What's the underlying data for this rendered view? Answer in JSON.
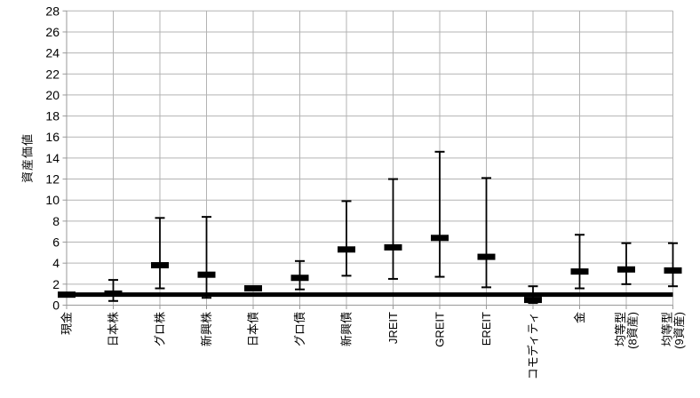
{
  "chart_data": {
    "type": "errorbar",
    "title": "",
    "ylabel": "資産価値",
    "xlabel": "",
    "ylim": [
      0,
      28
    ],
    "ytick_step": 2,
    "grid": true,
    "legend": "none",
    "reference_line_value": 1.0,
    "categories": [
      "現金",
      "日本株",
      "グロ株",
      "新興株",
      "日本債",
      "グロ債",
      "新興債",
      "JREIT",
      "GREIT",
      "EREIT",
      "コモディティ",
      "金",
      "均等型\n(8資産)",
      "均等型\n(9資産)"
    ],
    "series": [
      {
        "name": "median",
        "values": [
          1.0,
          1.1,
          3.8,
          2.9,
          1.6,
          2.6,
          5.3,
          5.5,
          6.4,
          4.6,
          0.5,
          3.2,
          3.4,
          3.3
        ]
      },
      {
        "name": "low",
        "values": [
          1.0,
          0.4,
          1.6,
          0.7,
          1.6,
          1.5,
          2.8,
          2.5,
          2.7,
          1.7,
          0.2,
          1.6,
          2.0,
          1.8
        ]
      },
      {
        "name": "high",
        "values": [
          1.0,
          2.4,
          8.3,
          8.4,
          1.6,
          4.2,
          9.9,
          12.0,
          14.6,
          12.1,
          1.8,
          6.7,
          5.9,
          5.9
        ]
      }
    ],
    "colors": {
      "data": "#000000",
      "gridline": "#b3b3b3",
      "axis": "#999999",
      "background": "#ffffff"
    },
    "y_tick_labels": [
      "0",
      "2",
      "4",
      "6",
      "8",
      "10",
      "12",
      "14",
      "16",
      "18",
      "20",
      "22",
      "24",
      "26",
      "28"
    ]
  }
}
